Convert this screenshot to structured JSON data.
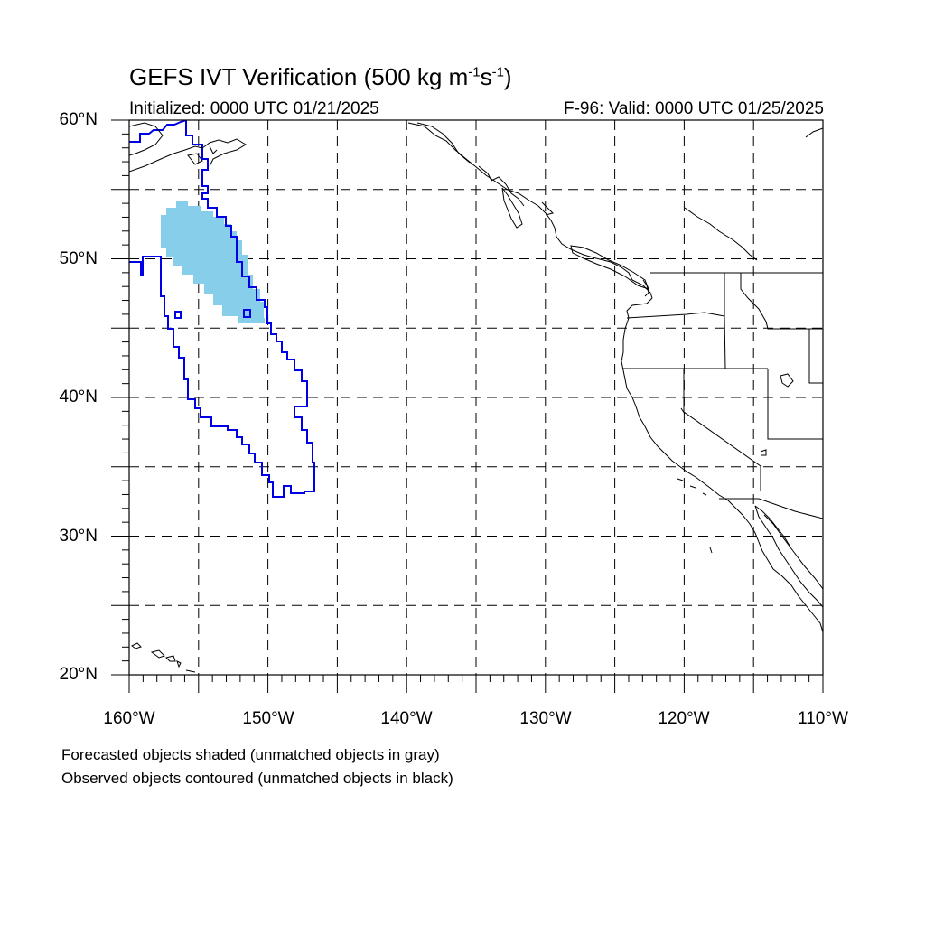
{
  "header": {
    "title_main": "GEFS IVT Verification (500 kg m",
    "title_sup1": "-1",
    "title_mid": "s",
    "title_sup2": "-1",
    "title_end": ")",
    "initialized": "Initialized: 0000 UTC 01/21/2025",
    "valid": "F-96: Valid: 0000 UTC 01/25/2025"
  },
  "map": {
    "extent": {
      "lon_min": -160,
      "lon_max": -110,
      "lat_min": 20,
      "lat_max": 60
    },
    "grid": "dashed every 5 degrees",
    "lat_labels": [
      "60°N",
      "50°N",
      "40°N",
      "30°N",
      "20°N"
    ],
    "lon_labels": [
      "160°W",
      "150°W",
      "140°W",
      "130°W",
      "120°W",
      "110°W"
    ],
    "colors": {
      "forecast_fill": "#87ceeb",
      "observed_contour": "#0000e6",
      "coastline": "#000000",
      "grid": "#000000"
    },
    "forecast_object": "shaded light blue, ~54N 157W to ~46N 150W",
    "observed_object": "blue contour, ~60N 154W to ~33N 147W"
  },
  "footer": {
    "note1": "Forecasted objects shaded (unmatched objects in gray)",
    "note2": "Observed objects contoured (unmatched objects in black)"
  }
}
